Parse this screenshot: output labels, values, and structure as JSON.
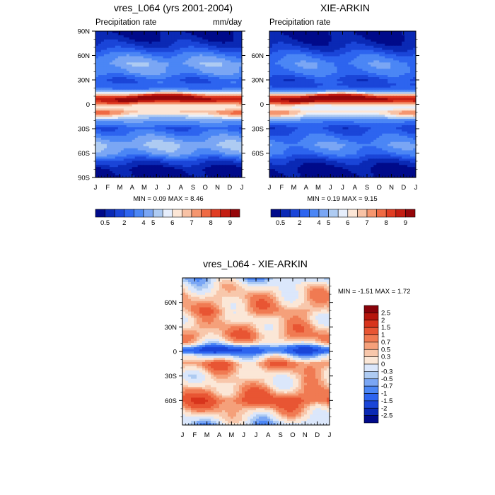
{
  "colors": {
    "abs_levels": [
      "#000a8a",
      "#0a29b5",
      "#1a45d8",
      "#2d64ef",
      "#4b86f5",
      "#7aa6f4",
      "#aecbf2",
      "#e6eefc",
      "#fce6d6",
      "#f8c2a5",
      "#f5966f",
      "#ef6a44",
      "#e03d23",
      "#c31d12",
      "#95060a"
    ],
    "diff_levels": [
      "#000a8a",
      "#0a29b5",
      "#1a45d8",
      "#2d64ef",
      "#4b86f5",
      "#7aa6f4",
      "#aecbf2",
      "#dbe7fb",
      "#fbe7d7",
      "#f8c7ab",
      "#f5a07a",
      "#f07a52",
      "#e85533",
      "#d8341c",
      "#b5150c",
      "#88020a"
    ]
  },
  "chart_data": [
    {
      "type": "heatmap",
      "title": "vres_L064 (yrs 2001-2004)",
      "left_label": "Precipitation rate",
      "right_label": "mm/day",
      "x_ticks": [
        "J",
        "F",
        "M",
        "A",
        "M",
        "J",
        "J",
        "A",
        "S",
        "O",
        "N",
        "D",
        "J"
      ],
      "y_ticks": [
        "90N",
        "60N",
        "30N",
        "0",
        "30S",
        "60S",
        "90S"
      ],
      "ylim": [
        -90,
        90
      ],
      "min_label": "MIN =   0.09 MAX =   8.46",
      "legend_labels": [
        "0.5",
        "2",
        "4",
        "5",
        "6",
        "7",
        "8",
        "9"
      ],
      "lat_profile": {
        "lat": [
          90,
          80,
          70,
          60,
          50,
          40,
          30,
          20,
          15,
          10,
          7,
          5,
          0,
          -5,
          -10,
          -15,
          -20,
          -30,
          -40,
          -50,
          -60,
          -70,
          -80,
          -90
        ],
        "value": [
          0.3,
          0.6,
          1.2,
          2.2,
          2.8,
          2.5,
          1.6,
          1.8,
          3.2,
          5.6,
          7.2,
          7.0,
          4.5,
          4.0,
          4.6,
          3.2,
          2.6,
          1.6,
          2.4,
          3.0,
          2.6,
          1.2,
          0.3,
          0.2
        ]
      }
    },
    {
      "type": "heatmap",
      "title": "XIE-ARKIN",
      "left_label": "Precipitation rate",
      "right_label": "",
      "x_ticks": [
        "J",
        "F",
        "M",
        "A",
        "M",
        "J",
        "J",
        "A",
        "S",
        "O",
        "N",
        "D",
        "J"
      ],
      "y_ticks": [
        "60N",
        "30N",
        "0",
        "30S",
        "60S"
      ],
      "ylim": [
        -90,
        90
      ],
      "min_label": "MIN =   0.19 MAX =   9.15",
      "legend_labels": [
        "0.5",
        "2",
        "4",
        "5",
        "6",
        "7",
        "8",
        "9"
      ],
      "lat_profile": {
        "lat": [
          90,
          80,
          70,
          60,
          50,
          40,
          30,
          20,
          15,
          10,
          7,
          5,
          0,
          -5,
          -10,
          -15,
          -20,
          -30,
          -40,
          -50,
          -60,
          -70,
          -80,
          -90
        ],
        "value": [
          0.3,
          0.5,
          0.9,
          1.8,
          2.3,
          2.1,
          1.3,
          1.5,
          2.8,
          5.5,
          7.6,
          7.3,
          4.2,
          3.6,
          4.3,
          3.0,
          2.2,
          1.3,
          1.9,
          2.4,
          2.0,
          0.9,
          0.3,
          0.2
        ]
      }
    },
    {
      "type": "heatmap",
      "title": "vres_L064 - XIE-ARKIN",
      "x_ticks": [
        "J",
        "F",
        "M",
        "A",
        "M",
        "J",
        "J",
        "A",
        "S",
        "O",
        "N",
        "D",
        "J"
      ],
      "y_ticks": [
        "60N",
        "30N",
        "0",
        "30S",
        "60S"
      ],
      "ylim": [
        -90,
        90
      ],
      "min_label": "MIN =  -1.51 MAX =   1.72",
      "legend_labels": [
        "2.5",
        "2",
        "1.5",
        "1",
        "0.7",
        "0.5",
        "0.3",
        "0",
        "-0.3",
        "-0.5",
        "-0.7",
        "-1",
        "-1.5",
        "-2",
        "-2.5"
      ],
      "lat_profile": {
        "lat": [
          90,
          80,
          70,
          60,
          50,
          40,
          30,
          20,
          15,
          10,
          5,
          0,
          -5,
          -10,
          -15,
          -20,
          -30,
          -40,
          -50,
          -60,
          -70,
          -80,
          -90
        ],
        "value": [
          -0.4,
          0.1,
          0.4,
          0.5,
          0.6,
          0.3,
          0.5,
          0.7,
          0.5,
          0.1,
          -0.9,
          -1.3,
          -0.3,
          0.2,
          0.8,
          0.6,
          0.2,
          0.3,
          0.7,
          1.2,
          0.6,
          0.1,
          -0.4
        ]
      }
    }
  ]
}
